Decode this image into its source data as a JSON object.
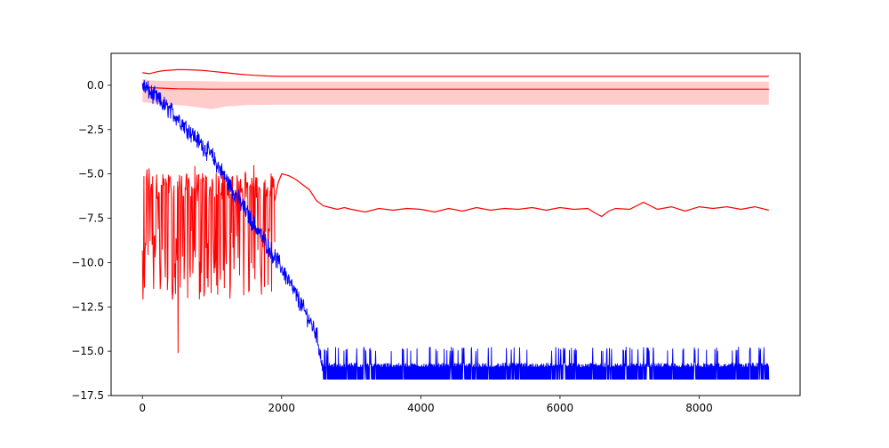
{
  "chart_data": {
    "type": "line",
    "title": "",
    "xlabel": "",
    "ylabel": "",
    "xlim": [
      -450,
      9450
    ],
    "ylim": [
      -17.5,
      1.8
    ],
    "xticks": [
      0,
      2000,
      4000,
      6000,
      8000
    ],
    "xtick_labels": [
      "0",
      "2000",
      "4000",
      "6000",
      "8000"
    ],
    "yticks": [
      0.0,
      -2.5,
      -5.0,
      -7.5,
      -10.0,
      -12.5,
      -15.0,
      -17.5
    ],
    "ytick_labels": [
      "0.0",
      "−2.5",
      "−5.0",
      "−7.5",
      "−10.0",
      "−12.5",
      "−15.0",
      "−17.5"
    ],
    "grid": false,
    "legend": "none",
    "colors": {
      "red": "#ff0000",
      "blue": "#0000ff",
      "band": "#ff9999"
    },
    "series": [
      {
        "color": "red",
        "style": "line",
        "x": [
          0,
          100,
          200,
          300,
          400,
          500,
          600,
          700,
          800,
          900,
          1000,
          1200,
          1400,
          1600,
          1800,
          2000,
          2500,
          3000,
          4000,
          5000,
          6000,
          7000,
          8000,
          9000
        ],
        "y": [
          0.7,
          0.65,
          0.75,
          0.82,
          0.85,
          0.88,
          0.88,
          0.87,
          0.85,
          0.82,
          0.78,
          0.7,
          0.62,
          0.56,
          0.52,
          0.5,
          0.5,
          0.5,
          0.5,
          0.5,
          0.5,
          0.5,
          0.5,
          0.5
        ]
      },
      {
        "color": "red",
        "style": "line",
        "x": [
          0,
          200,
          500,
          1000,
          1500,
          2000,
          3000,
          4000,
          5000,
          6000,
          7000,
          8000,
          9000
        ],
        "y": [
          -0.12,
          -0.15,
          -0.2,
          -0.22,
          -0.22,
          -0.22,
          -0.22,
          -0.22,
          -0.22,
          -0.22,
          -0.22,
          -0.22,
          -0.22
        ]
      },
      {
        "color": "red",
        "style": "band",
        "x": [
          0,
          100,
          200,
          400,
          600,
          800,
          1000,
          1200,
          1500,
          2000,
          3000,
          5000,
          7000,
          9000
        ],
        "upper": [
          0.35,
          0.28,
          0.25,
          0.24,
          0.24,
          0.23,
          0.22,
          0.2,
          0.2,
          0.2,
          0.2,
          0.2,
          0.2,
          0.2
        ],
        "lower": [
          -0.95,
          -1.0,
          -1.05,
          -1.1,
          -1.15,
          -1.25,
          -1.35,
          -1.2,
          -1.12,
          -1.1,
          -1.1,
          -1.1,
          -1.1,
          -1.1
        ]
      },
      {
        "color": "red",
        "style": "line",
        "x": [
          1900,
          1950,
          2000,
          2100,
          2200,
          2300,
          2400,
          2500,
          2600,
          2700,
          2800,
          2900,
          3000,
          3200,
          3400,
          3600,
          3800,
          4000,
          4200,
          4400,
          4600,
          4800,
          5000,
          5200,
          5400,
          5600,
          5800,
          6000,
          6200,
          6400,
          6500,
          6600,
          6700,
          6800,
          7000,
          7200,
          7400,
          7600,
          7800,
          8000,
          8200,
          8400,
          8600,
          8800,
          9000
        ],
        "y": [
          -6.5,
          -5.5,
          -5.0,
          -5.1,
          -5.3,
          -5.6,
          -5.9,
          -6.5,
          -6.8,
          -6.9,
          -7.0,
          -6.9,
          -7.0,
          -7.15,
          -6.95,
          -7.05,
          -6.95,
          -7.0,
          -7.15,
          -6.95,
          -7.1,
          -6.9,
          -7.05,
          -6.95,
          -7.0,
          -6.9,
          -7.05,
          -6.9,
          -7.0,
          -6.95,
          -7.2,
          -7.4,
          -7.1,
          -6.95,
          -7.0,
          -6.6,
          -7.0,
          -6.85,
          -7.1,
          -6.85,
          -6.95,
          -6.85,
          -7.0,
          -6.85,
          -7.05
        ]
      },
      {
        "color": "red",
        "style": "noisy",
        "description": "oscillating early phase: x 0–1900, values between about −15.1 and −4.5, centered near −6.5",
        "x_range": [
          0,
          1900
        ],
        "center": -6.6,
        "min": -15.1,
        "max": -4.5
      },
      {
        "color": "blue",
        "style": "noisy",
        "description": "descending from about 0.3 at x=0 to about −16.1 at x≈2600, then noisy plateau between −16.6 and −15.0 until x=9000",
        "trend_x": [
          0,
          500,
          1000,
          1500,
          2000,
          2500,
          2600,
          9000
        ],
        "trend_y": [
          0.0,
          -1.8,
          -4.0,
          -7.2,
          -10.3,
          -14.0,
          -16.1,
          -16.1
        ],
        "plateau_min": -16.6,
        "plateau_max": -15.0
      }
    ]
  }
}
